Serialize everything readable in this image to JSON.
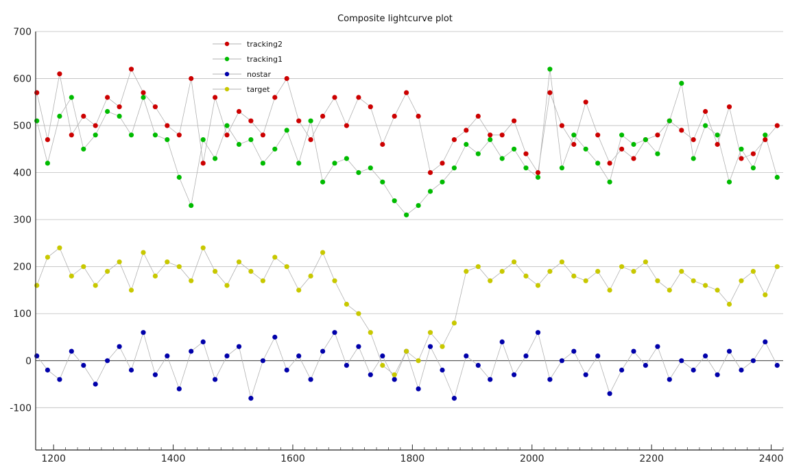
{
  "chart_data": {
    "type": "scatter",
    "title": "Composite lightcurve plot",
    "xlabel": "",
    "ylabel": "",
    "xlim": [
      1170,
      2420
    ],
    "ylim": [
      -190,
      700
    ],
    "x_ticks": [
      1200,
      1400,
      1600,
      1800,
      2000,
      2200,
      2400
    ],
    "y_ticks": [
      -100,
      0,
      100,
      200,
      300,
      400,
      500,
      600,
      700
    ],
    "grid": true,
    "legend_position": "top-left",
    "connector_color": "#b0b0b0",
    "series": [
      {
        "name": "tracking2",
        "color": "#cc0000",
        "x": [
          1172,
          1190,
          1210,
          1230,
          1250,
          1270,
          1290,
          1310,
          1330,
          1350,
          1370,
          1390,
          1410,
          1430,
          1450,
          1470,
          1490,
          1510,
          1530,
          1550,
          1570,
          1590,
          1610,
          1630,
          1650,
          1670,
          1690,
          1710,
          1730,
          1750,
          1770,
          1790,
          1810,
          1830,
          1850,
          1870,
          1890,
          1910,
          1930,
          1950,
          1970,
          1990,
          2010,
          2030,
          2050,
          2070,
          2090,
          2110,
          2130,
          2150,
          2170,
          2190,
          2210,
          2230,
          2250,
          2270,
          2290,
          2310,
          2330,
          2350,
          2370,
          2390,
          2410
        ],
        "y": [
          570,
          470,
          610,
          480,
          520,
          500,
          560,
          540,
          620,
          570,
          540,
          500,
          480,
          600,
          420,
          560,
          480,
          530,
          510,
          480,
          560,
          600,
          510,
          470,
          520,
          560,
          500,
          560,
          540,
          460,
          520,
          570,
          520,
          400,
          420,
          470,
          490,
          520,
          480,
          480,
          510,
          440,
          400,
          570,
          500,
          460,
          550,
          480,
          420,
          450,
          430,
          470,
          480,
          510,
          490,
          470,
          530,
          460,
          540,
          430,
          440,
          470,
          500
        ]
      },
      {
        "name": "tracking1",
        "color": "#00bb00",
        "x": [
          1172,
          1190,
          1210,
          1230,
          1250,
          1270,
          1290,
          1310,
          1330,
          1350,
          1370,
          1390,
          1410,
          1430,
          1450,
          1470,
          1490,
          1510,
          1530,
          1550,
          1570,
          1590,
          1610,
          1630,
          1650,
          1670,
          1690,
          1710,
          1730,
          1750,
          1770,
          1790,
          1810,
          1830,
          1850,
          1870,
          1890,
          1910,
          1930,
          1950,
          1970,
          1990,
          2010,
          2030,
          2050,
          2070,
          2090,
          2110,
          2130,
          2150,
          2170,
          2190,
          2210,
          2230,
          2250,
          2270,
          2290,
          2310,
          2330,
          2350,
          2370,
          2390,
          2410
        ],
        "y": [
          510,
          420,
          520,
          560,
          450,
          480,
          530,
          520,
          480,
          560,
          480,
          470,
          390,
          330,
          470,
          430,
          500,
          460,
          470,
          420,
          450,
          490,
          420,
          510,
          380,
          420,
          430,
          400,
          410,
          380,
          340,
          310,
          330,
          360,
          380,
          410,
          460,
          440,
          470,
          430,
          450,
          410,
          390,
          620,
          410,
          480,
          450,
          420,
          380,
          480,
          460,
          470,
          440,
          510,
          590,
          430,
          500,
          480,
          380,
          450,
          410,
          480,
          390
        ]
      },
      {
        "name": "nostar",
        "color": "#0000aa",
        "x": [
          1172,
          1190,
          1210,
          1230,
          1250,
          1270,
          1290,
          1310,
          1330,
          1350,
          1370,
          1390,
          1410,
          1430,
          1450,
          1470,
          1490,
          1510,
          1530,
          1550,
          1570,
          1590,
          1610,
          1630,
          1650,
          1670,
          1690,
          1710,
          1730,
          1750,
          1770,
          1790,
          1810,
          1830,
          1850,
          1870,
          1890,
          1910,
          1930,
          1950,
          1970,
          1990,
          2010,
          2030,
          2050,
          2070,
          2090,
          2110,
          2130,
          2150,
          2170,
          2190,
          2210,
          2230,
          2250,
          2270,
          2290,
          2310,
          2330,
          2350,
          2370,
          2390,
          2410
        ],
        "y": [
          10,
          -20,
          -40,
          20,
          -10,
          -50,
          0,
          30,
          -20,
          60,
          -30,
          10,
          -60,
          20,
          40,
          -40,
          10,
          30,
          -80,
          0,
          50,
          -20,
          10,
          -40,
          20,
          60,
          -10,
          30,
          -30,
          10,
          -40,
          20,
          -60,
          30,
          -20,
          -80,
          10,
          -10,
          -40,
          40,
          -30,
          10,
          60,
          -40,
          0,
          20,
          -30,
          10,
          -70,
          -20,
          20,
          -10,
          30,
          -40,
          0,
          -20,
          10,
          -30,
          20,
          -20,
          0,
          40,
          -10
        ]
      },
      {
        "name": "target",
        "color": "#c8c800",
        "x": [
          1172,
          1190,
          1210,
          1230,
          1250,
          1270,
          1290,
          1310,
          1330,
          1350,
          1370,
          1390,
          1410,
          1430,
          1450,
          1470,
          1490,
          1510,
          1530,
          1550,
          1570,
          1590,
          1610,
          1630,
          1650,
          1670,
          1690,
          1710,
          1730,
          1750,
          1770,
          1790,
          1810,
          1830,
          1850,
          1870,
          1890,
          1910,
          1930,
          1950,
          1970,
          1990,
          2010,
          2030,
          2050,
          2070,
          2090,
          2110,
          2130,
          2150,
          2170,
          2190,
          2210,
          2230,
          2250,
          2270,
          2290,
          2310,
          2330,
          2350,
          2370,
          2390,
          2410
        ],
        "y": [
          160,
          220,
          240,
          180,
          200,
          160,
          190,
          210,
          150,
          230,
          180,
          210,
          200,
          170,
          240,
          190,
          160,
          210,
          190,
          170,
          220,
          200,
          150,
          180,
          230,
          170,
          120,
          100,
          60,
          -10,
          -30,
          20,
          0,
          60,
          30,
          80,
          190,
          200,
          170,
          190,
          210,
          180,
          160,
          190,
          210,
          180,
          170,
          190,
          150,
          200,
          190,
          210,
          170,
          150,
          190,
          170,
          160,
          150,
          120,
          170,
          190,
          140,
          200
        ]
      }
    ]
  }
}
